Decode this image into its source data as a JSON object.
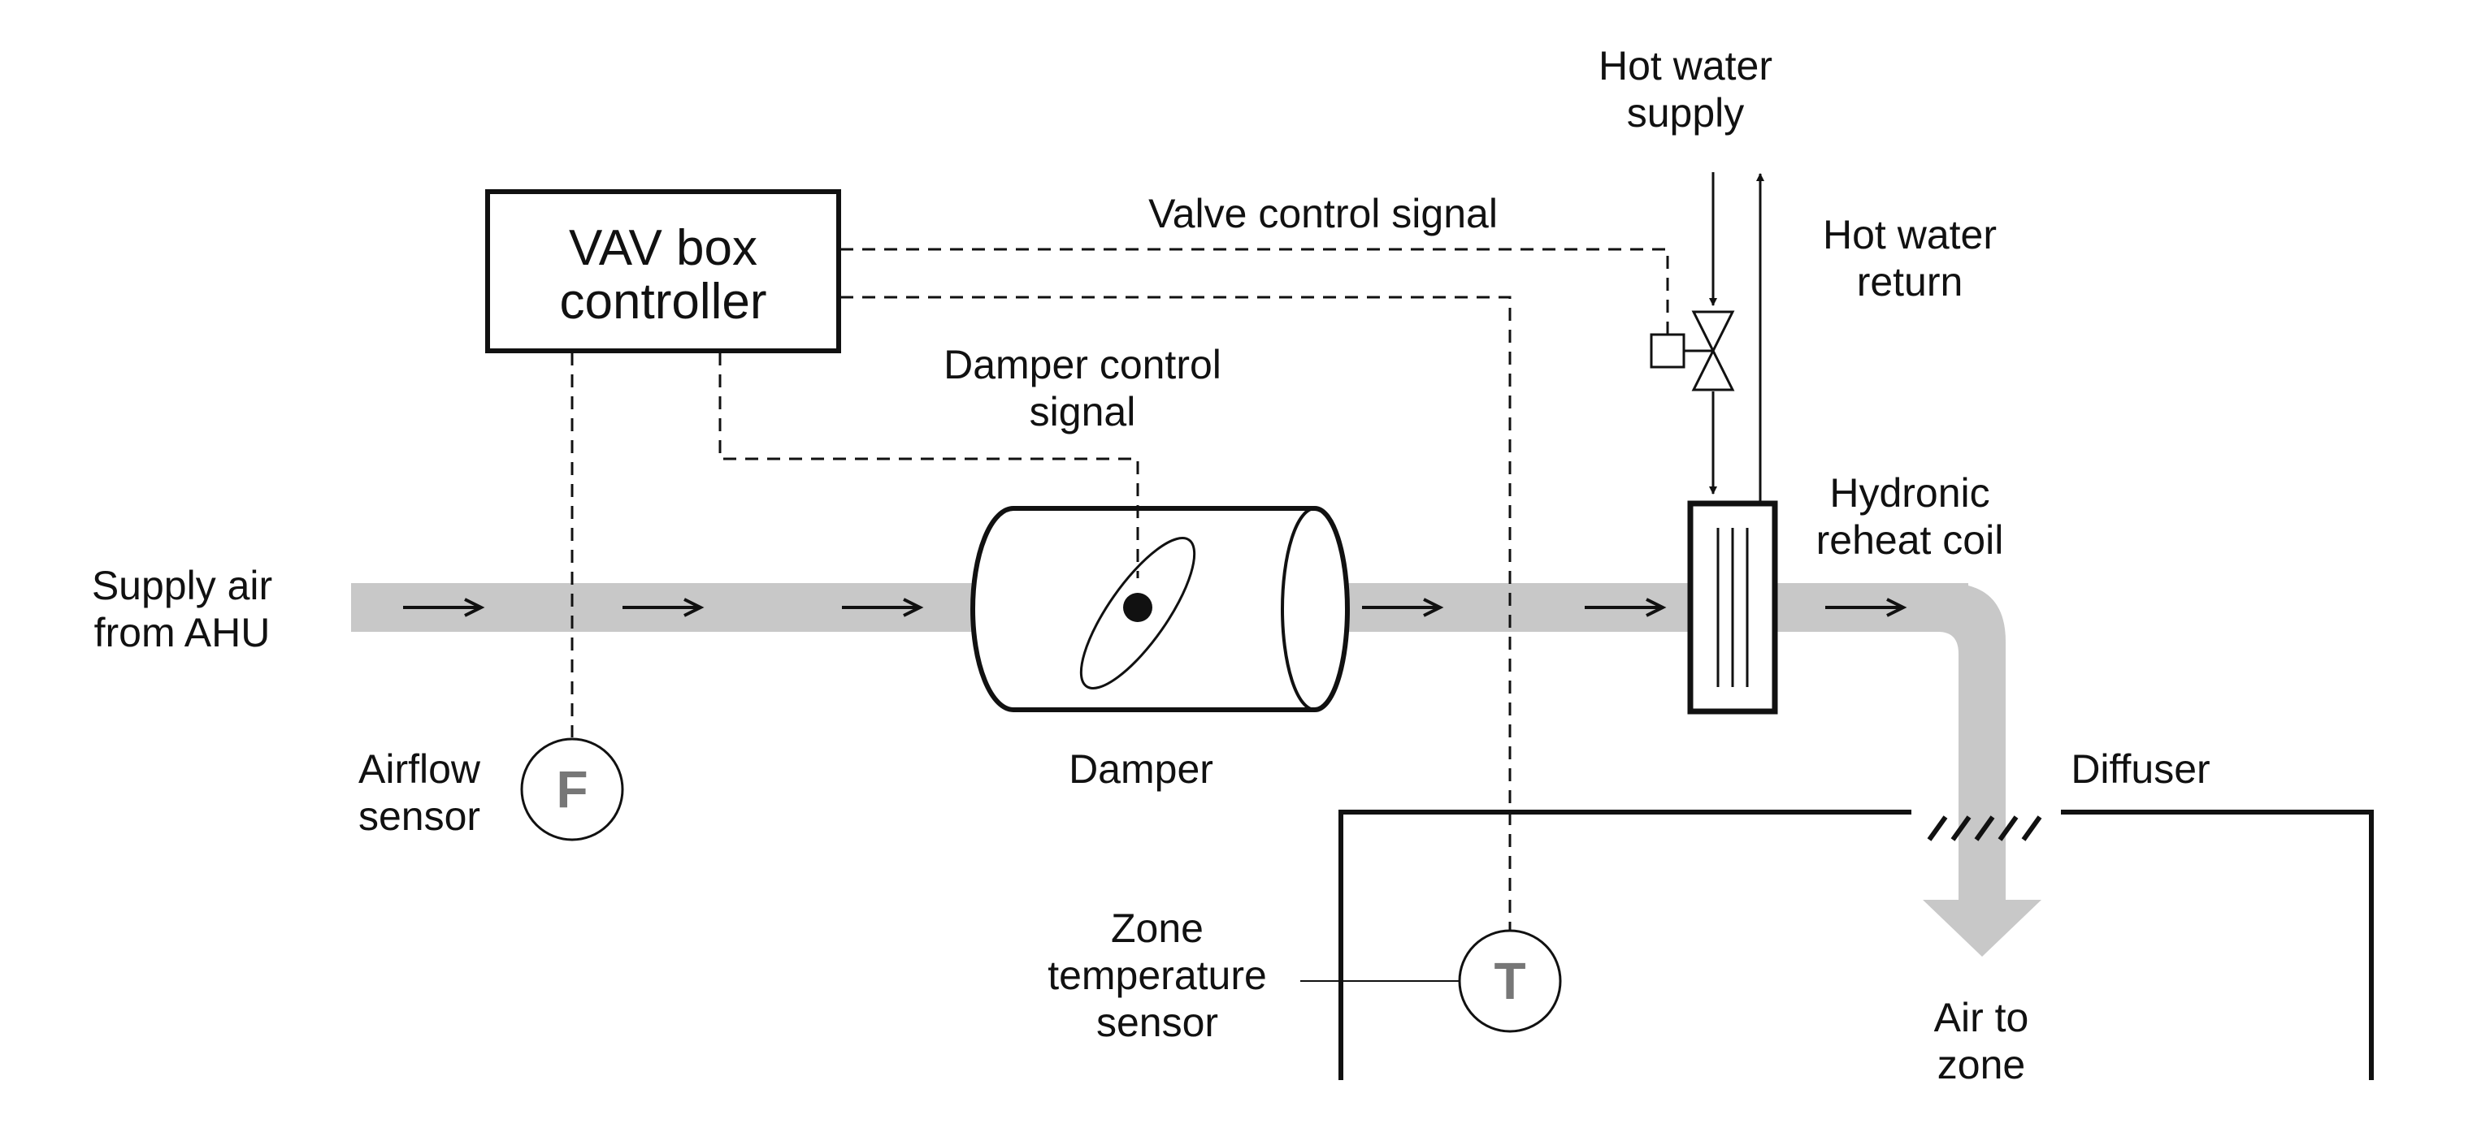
{
  "colors": {
    "duct": "#c8c8c8",
    "line": "#111111",
    "sensor_letter": "#777777",
    "background": "#ffffff"
  },
  "labels": {
    "controller": [
      "VAV box",
      "controller"
    ],
    "supply_air": [
      "Supply air",
      "from AHU"
    ],
    "airflow_sensor": [
      "Airflow",
      "sensor"
    ],
    "airflow_sensor_letter": "F",
    "damper_signal": [
      "Damper control",
      "signal"
    ],
    "valve_signal": "Valve control signal",
    "damper": "Damper",
    "hot_water_supply": [
      "Hot water",
      "supply"
    ],
    "hot_water_return": [
      "Hot water",
      "return"
    ],
    "reheat_coil": [
      "Hydronic",
      "reheat coil"
    ],
    "diffuser": "Diffuser",
    "zone_temp_sensor": [
      "Zone",
      "temperature",
      "sensor"
    ],
    "zone_temp_sensor_letter": "T",
    "air_to_zone": [
      "Air to",
      "zone"
    ]
  },
  "icons": [
    "flow-arrow-icon",
    "control-valve-icon",
    "valve-actuator-icon",
    "damper-blade-icon",
    "diffuser-grille-icon"
  ]
}
